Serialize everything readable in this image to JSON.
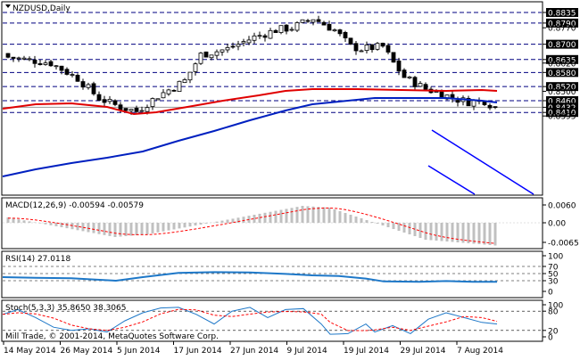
{
  "window": {
    "title": "NZDUSD,Daily"
  },
  "main_pane": {
    "axis_labels": [
      "0.8835",
      "0.8790",
      "0.8770",
      "0.8700",
      "0.8635",
      "0.8620",
      "0.8580",
      "0.8520",
      "0.8500",
      "0.8460",
      "0.8432",
      "0.8410",
      "0.8395"
    ],
    "level_labels": [
      "0.8835",
      "0.8790",
      "0.8700",
      "0.8635",
      "0.8580",
      "0.8520",
      "0.8460",
      "0.8410"
    ],
    "current_price": "0.8432",
    "colors": {
      "bull": "#ffffff",
      "bear": "#000000",
      "ma_red": "#e00000",
      "ma_blue": "#0020c0",
      "channel": "#0000ff",
      "level_line": "#000080",
      "price_tag_bg": "#000000"
    }
  },
  "macd_pane": {
    "label": "MACD(12,26,9) -0.00594 -0.00579",
    "axis_labels": [
      "0.0060",
      "0.00",
      "-0.0065"
    ],
    "colors": {
      "histogram": "#c0c0c0",
      "signal": "#ff0000"
    }
  },
  "rsi_pane": {
    "label": "RSI(14) 27.0118",
    "axis_labels": [
      "100",
      "70",
      "50",
      "30",
      "0"
    ],
    "colors": {
      "line": "#1e78c8"
    }
  },
  "stoch_pane": {
    "label": "Stoch(5,3,3) 35.8650 38.3065",
    "axis_labels": [
      "100",
      "80",
      "20",
      "0"
    ],
    "colors": {
      "main": "#1e78c8",
      "signal": "#ff0000"
    }
  },
  "copyright": "Mill Trade, © 2001-2014, MetaQuotes Software Corp.",
  "time_axis": [
    "14 May 2014",
    "26 May 2014",
    "5 Jun 2014",
    "17 Jun 2014",
    "27 Jun 2014",
    "9 Jul 2014",
    "19 Jul 2014",
    "29 Jul 2014",
    "7 Aug 2014"
  ]
}
